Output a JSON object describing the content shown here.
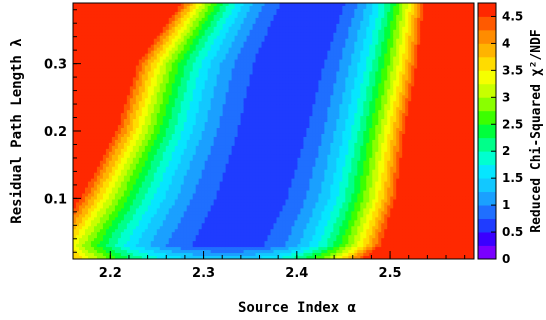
{
  "chart_data": {
    "type": "heatmap",
    "title": "",
    "xlabel": "Source Index α",
    "ylabel": "Residual Path Length λ",
    "zlabel": "Reduced Chi-Squared χ²/NDF",
    "xlim": [
      2.16,
      2.59
    ],
    "ylim": [
      0.01,
      0.39
    ],
    "zlim": [
      0,
      4.75
    ],
    "x_ticks": [
      2.2,
      2.3,
      2.4,
      2.5
    ],
    "x_tick_labels": [
      "2.2",
      "2.3",
      "2.4",
      "2.5"
    ],
    "y_ticks": [
      0.1,
      0.2,
      0.3
    ],
    "y_tick_labels": [
      "0.1",
      "0.2",
      "0.3"
    ],
    "z_ticks": [
      0,
      0.5,
      1,
      1.5,
      2,
      2.5,
      3,
      3.5,
      4,
      4.5
    ],
    "z_tick_labels": [
      "0",
      "0.5",
      "1",
      "1.5",
      "2",
      "2.5",
      "3",
      "3.5",
      "4",
      "4.5"
    ],
    "contour_levels": [
      0,
      0.25,
      0.5,
      0.75,
      1,
      1.25,
      1.5,
      1.75,
      2,
      2.25,
      2.5,
      2.75,
      3,
      3.25,
      3.5,
      3.75,
      4,
      4.25,
      4.5,
      4.75
    ],
    "level_colors": [
      "#7a00ff",
      "#3a00ff",
      "#1f3cff",
      "#1f6fff",
      "#1aa0ff",
      "#12c8ff",
      "#06e6ff",
      "#00ffd0",
      "#00ff8a",
      "#00ff3c",
      "#3cff00",
      "#8aff00",
      "#c8ff00",
      "#f5ff00",
      "#ffdc00",
      "#ffb400",
      "#ff8c00",
      "#ff5a00",
      "#ff2800"
    ],
    "minimum": {
      "x": 2.4,
      "y": 0.39,
      "value": 0.6
    },
    "valley_lower_edge": [
      {
        "y": 0.39,
        "x": 2.355
      },
      {
        "y": 0.3,
        "x": 2.32
      },
      {
        "y": 0.2,
        "x": 2.3
      },
      {
        "y": 0.1,
        "x": 2.27
      },
      {
        "y": 0.03,
        "x": 2.24
      }
    ],
    "valley_upper_edge": [
      {
        "y": 0.39,
        "x": 2.485
      },
      {
        "y": 0.3,
        "x": 2.47
      },
      {
        "y": 0.2,
        "x": 2.455
      },
      {
        "y": 0.1,
        "x": 2.44
      },
      {
        "y": 0.03,
        "x": 2.42
      }
    ],
    "colormap": "rainbow",
    "grid": false
  }
}
